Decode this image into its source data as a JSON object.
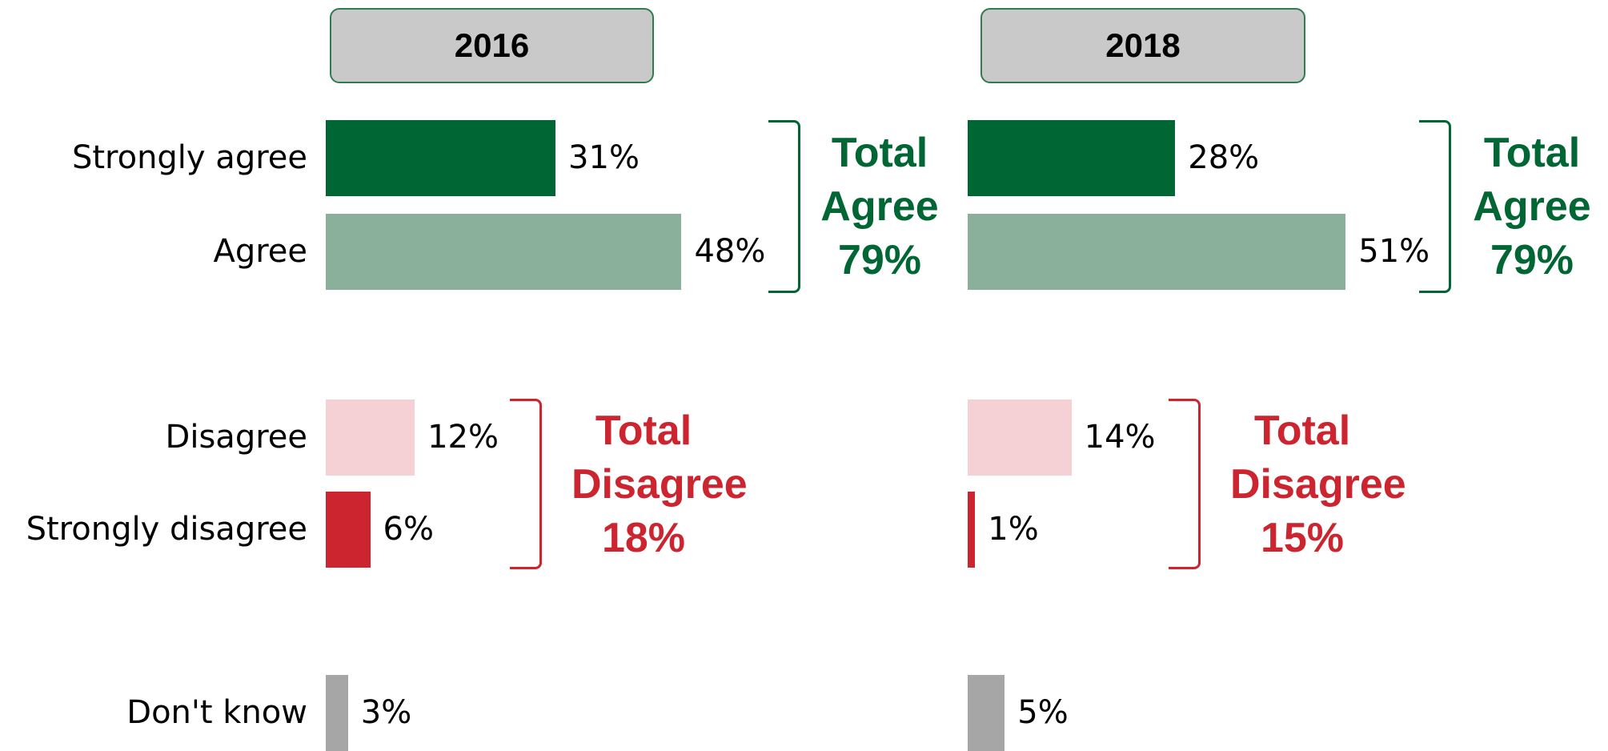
{
  "chart_data": {
    "type": "bar",
    "categories": [
      "Strongly agree",
      "Agree",
      "Disagree",
      "Strongly disagree",
      "Don't know"
    ],
    "colors": [
      "#006633",
      "#8ab09b",
      "#f5d0d5",
      "#cc2530",
      "#a6a6a6"
    ],
    "series": [
      {
        "name": "2016",
        "values": [
          31,
          48,
          12,
          6,
          3
        ],
        "value_labels": [
          "31%",
          "48%",
          "12%",
          "6%",
          "3%"
        ],
        "annotations": [
          {
            "text": "Total Agree",
            "value_label": "79%",
            "color": "#006633"
          },
          {
            "text": "Total Disagree",
            "value_label": "18%",
            "color": "#cc2530"
          }
        ]
      },
      {
        "name": "2018",
        "values": [
          28,
          51,
          14,
          1,
          5
        ],
        "value_labels": [
          "28%",
          "51%",
          "14%",
          "1%",
          "5%"
        ],
        "annotations": [
          {
            "text": "Total Agree",
            "value_label": "79%",
            "color": "#006633"
          },
          {
            "text": "Total Disagree",
            "value_label": "15%",
            "color": "#cc2530"
          }
        ]
      }
    ]
  }
}
